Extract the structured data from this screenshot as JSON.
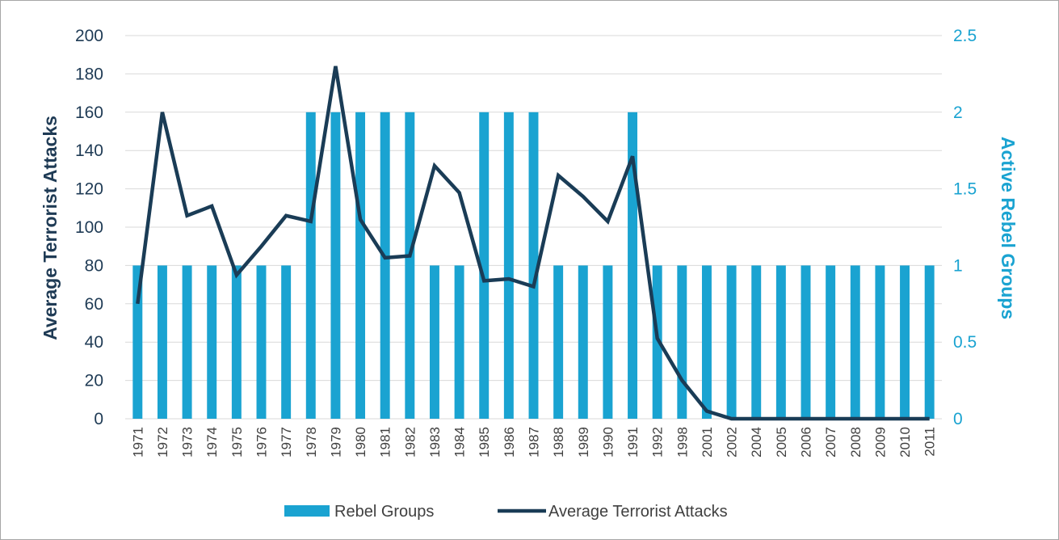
{
  "chart_data": {
    "type": "bar",
    "categories": [
      "1971",
      "1972",
      "1973",
      "1974",
      "1975",
      "1976",
      "1977",
      "1978",
      "1979",
      "1980",
      "1981",
      "1982",
      "1983",
      "1984",
      "1985",
      "1986",
      "1987",
      "1988",
      "1989",
      "1990",
      "1991",
      "1992",
      "1998",
      "2001",
      "2002",
      "2004",
      "2005",
      "2006",
      "2007",
      "2008",
      "2009",
      "2010",
      "2011"
    ],
    "series": [
      {
        "name": "Rebel Groups",
        "type": "bar",
        "axis": "right",
        "color": "#1aa3d1",
        "values": [
          1,
          1,
          1,
          1,
          1,
          1,
          1,
          2,
          2,
          2,
          2,
          2,
          1,
          1,
          2,
          2,
          2,
          1,
          1,
          1,
          2,
          1,
          1,
          1,
          1,
          1,
          1,
          1,
          1,
          1,
          1,
          1,
          1
        ]
      },
      {
        "name": "Average Terrorist Attacks",
        "type": "line",
        "axis": "left",
        "color": "#1a3c56",
        "values": [
          60,
          160,
          106,
          111,
          75,
          90,
          106,
          103,
          184,
          104,
          84,
          85,
          132,
          118,
          72,
          73,
          69,
          127,
          116,
          103,
          137,
          42,
          20,
          4,
          0,
          0,
          0,
          0,
          0,
          0,
          0,
          0,
          0
        ]
      }
    ],
    "ylabel": "Average Terrorist Attacks",
    "ylim": [
      0,
      200
    ],
    "yticks": [
      "0",
      "20",
      "40",
      "60",
      "80",
      "100",
      "120",
      "140",
      "160",
      "180",
      "200"
    ],
    "y2label": "Active Rebel Groups",
    "y2lim": [
      0,
      2.5
    ],
    "y2ticks": [
      "0",
      "0.5",
      "1",
      "1.5",
      "2",
      "2.5"
    ],
    "grid": true,
    "legend_position": "bottom"
  }
}
